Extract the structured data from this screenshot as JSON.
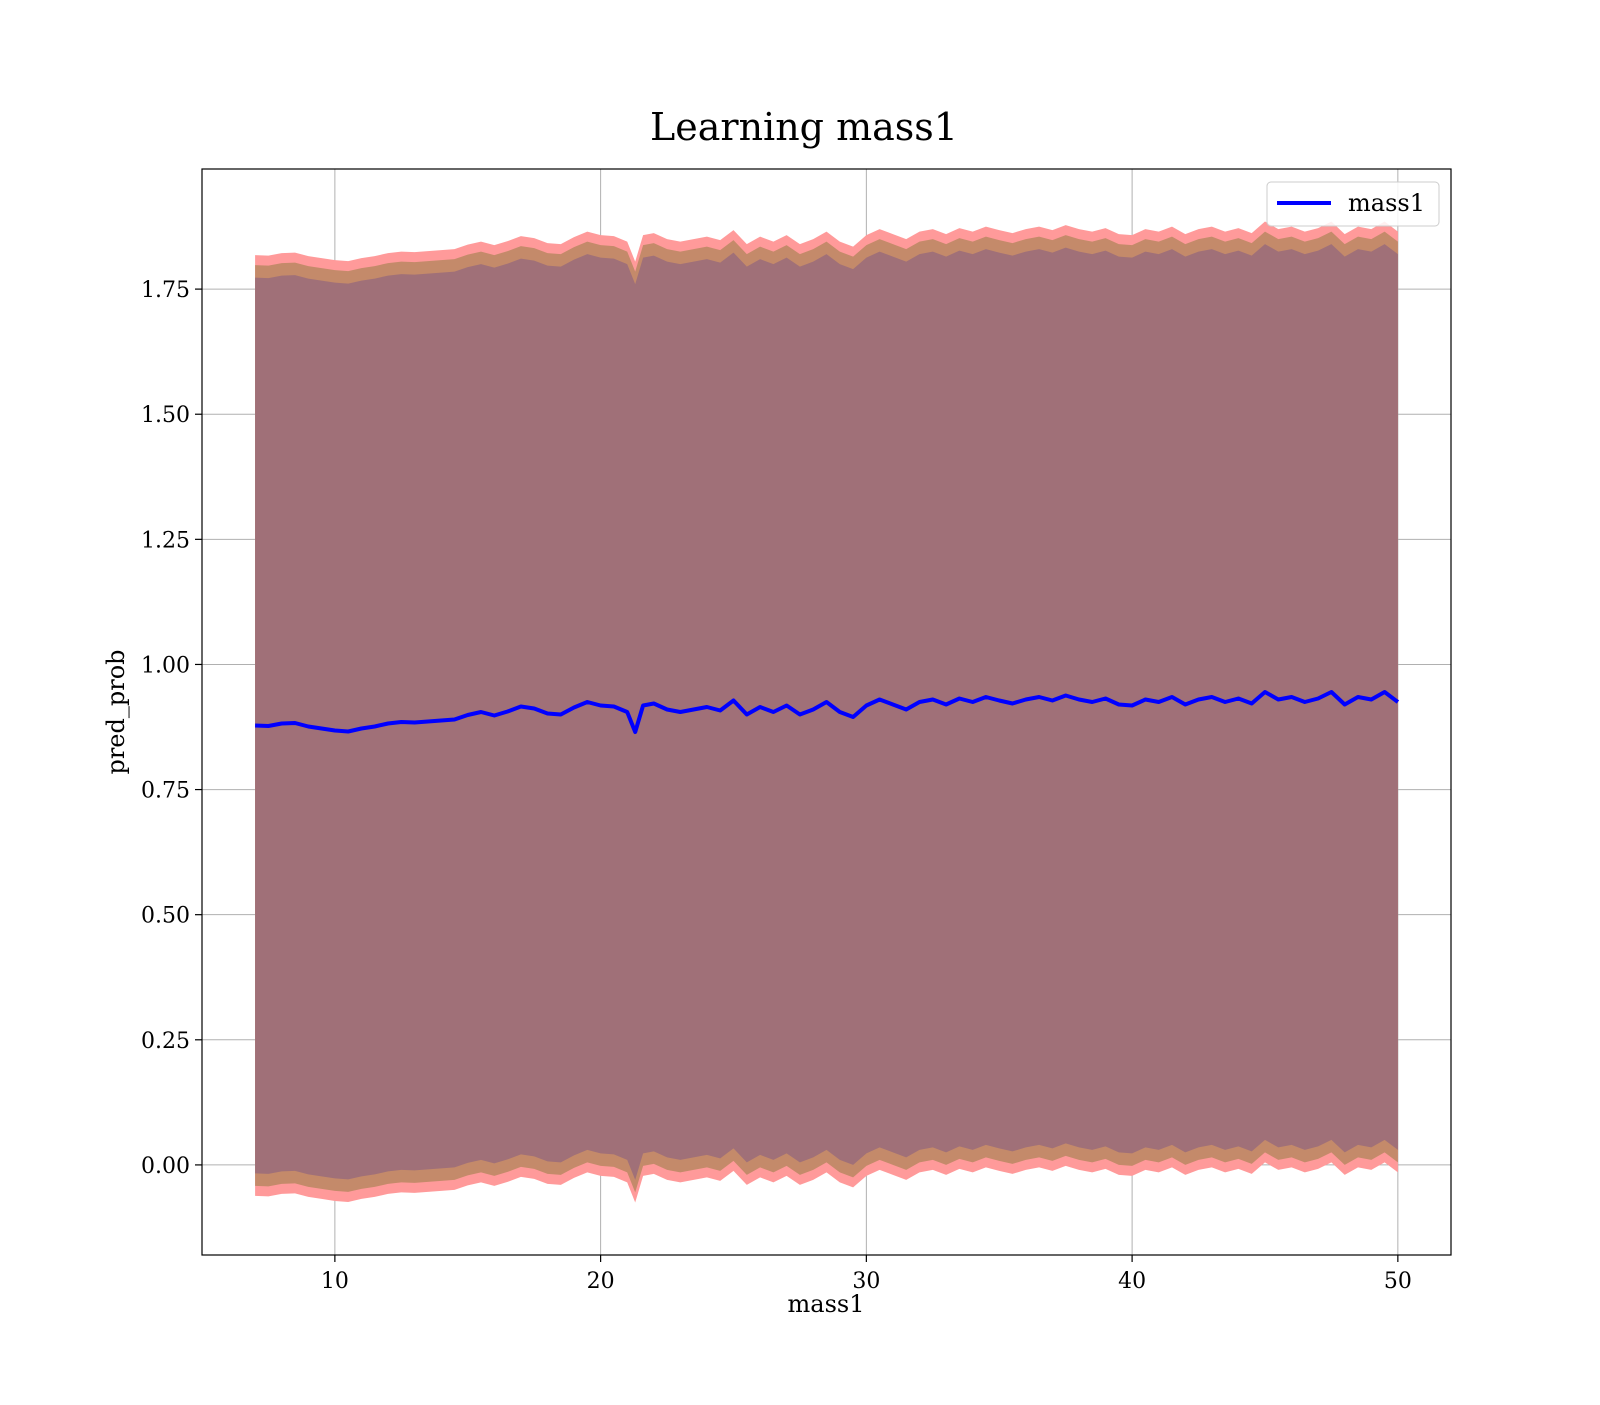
{
  "chart_data": {
    "type": "line",
    "title": "Learning mass1",
    "xlabel": "mass1",
    "ylabel": "pred_prob",
    "xlim": [
      5,
      52
    ],
    "ylim": [
      -0.18,
      1.99
    ],
    "xticks": [
      10,
      20,
      30,
      40,
      50
    ],
    "yticks": [
      0.0,
      0.25,
      0.5,
      0.75,
      1.0,
      1.25,
      1.5,
      1.75
    ],
    "ytick_labels": [
      "0.00",
      "0.25",
      "0.50",
      "0.75",
      "1.00",
      "1.25",
      "1.50",
      "1.75"
    ],
    "grid": true,
    "legend": {
      "position": "top-right",
      "entries": [
        "mass1"
      ]
    },
    "colors": {
      "line": "#0000ff",
      "band_outer": "#ff9a9a",
      "band_middle": "#c48a6a",
      "band_inner": "#a07078",
      "grid": "#b0b0b0"
    },
    "series": [
      {
        "name": "mass1",
        "x": [
          7,
          7.5,
          8,
          8.5,
          9,
          9.5,
          10,
          10.5,
          11,
          11.5,
          12,
          12.5,
          13,
          13.5,
          14,
          14.5,
          15,
          15.5,
          16,
          16.5,
          17,
          17.5,
          18,
          18.5,
          19,
          19.5,
          20,
          20.5,
          21,
          21.3,
          21.6,
          22,
          22.5,
          23,
          23.5,
          24,
          24.5,
          25,
          25.5,
          26,
          26.5,
          27,
          27.5,
          28,
          28.5,
          29,
          29.5,
          30,
          30.5,
          31,
          31.5,
          32,
          32.5,
          33,
          33.5,
          34,
          34.5,
          35,
          35.5,
          36,
          36.5,
          37,
          37.5,
          38,
          38.5,
          39,
          39.5,
          40,
          40.5,
          41,
          41.5,
          42,
          42.5,
          43,
          43.5,
          44,
          44.5,
          45,
          45.5,
          46,
          46.5,
          47,
          47.5,
          48,
          48.5,
          49,
          49.5,
          50
        ],
        "y": [
          0.878,
          0.877,
          0.882,
          0.883,
          0.876,
          0.872,
          0.868,
          0.866,
          0.872,
          0.876,
          0.882,
          0.885,
          0.884,
          0.886,
          0.888,
          0.89,
          0.899,
          0.905,
          0.898,
          0.906,
          0.916,
          0.912,
          0.902,
          0.9,
          0.914,
          0.925,
          0.918,
          0.916,
          0.905,
          0.865,
          0.918,
          0.922,
          0.91,
          0.905,
          0.91,
          0.915,
          0.908,
          0.928,
          0.9,
          0.915,
          0.905,
          0.918,
          0.9,
          0.91,
          0.925,
          0.905,
          0.895,
          0.918,
          0.93,
          0.92,
          0.91,
          0.925,
          0.93,
          0.92,
          0.932,
          0.925,
          0.935,
          0.928,
          0.922,
          0.93,
          0.935,
          0.928,
          0.938,
          0.93,
          0.925,
          0.932,
          0.92,
          0.918,
          0.93,
          0.925,
          0.935,
          0.92,
          0.93,
          0.935,
          0.925,
          0.932,
          0.922,
          0.945,
          0.93,
          0.935,
          0.925,
          0.932,
          0.945,
          0.92,
          0.935,
          0.93,
          0.945,
          0.925
        ]
      }
    ],
    "bands": [
      {
        "name": "outer",
        "offset_low": -0.94,
        "offset_high": 0.94
      },
      {
        "name": "middle",
        "offset_low": -0.92,
        "offset_high": 0.92
      },
      {
        "name": "inner",
        "offset_low": -0.895,
        "offset_high": 0.895
      }
    ]
  }
}
